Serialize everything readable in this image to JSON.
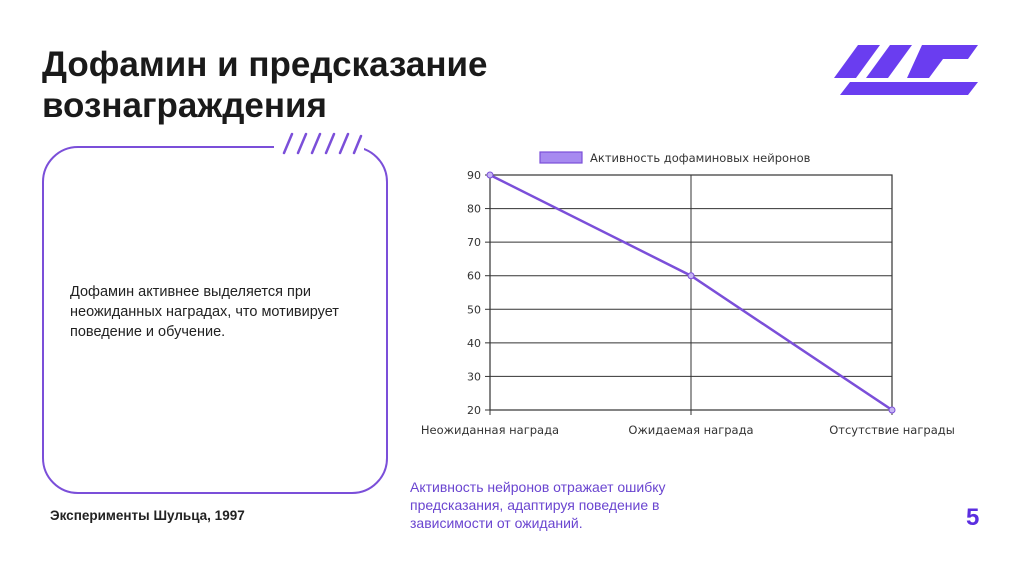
{
  "slide": {
    "title": "Дофамин и предсказание вознаграждения",
    "card_text": "Дофамин активнее выделяется при неожиданных наградах, что мотивирует поведение и обучение.",
    "footnote": "Эксперименты Шульца, 1997",
    "caption": "Активность нейронов отражает ошибку предсказания, адаптируя поведение в зависимости от ожиданий.",
    "page_number": "5",
    "accent_color": "#7b4fd9",
    "logo_color": "#6a3df0",
    "logo_icon": "brand-stripes-logo",
    "deco_icon": "striped-tab-decoration"
  },
  "chart_data": {
    "type": "line",
    "categories": [
      "Неожиданная награда",
      "Ожидаемая награда",
      "Отсутствие награды"
    ],
    "series": [
      {
        "name": "Активность дофаминовых нейронов",
        "values": [
          90,
          60,
          20
        ],
        "color": "#7b4fd9"
      }
    ],
    "ylim": [
      20,
      90
    ],
    "yticks": [
      20,
      30,
      40,
      50,
      60,
      70,
      80,
      90
    ],
    "grid": true,
    "legend": "top-center",
    "title": "",
    "xlabel": "",
    "ylabel": ""
  }
}
